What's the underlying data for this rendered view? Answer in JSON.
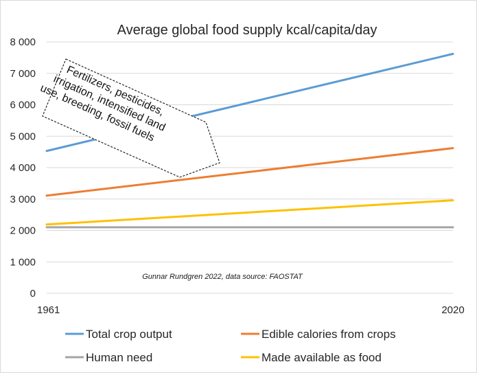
{
  "chart_data": {
    "type": "line",
    "title": "Average global food supply kcal/capita/day",
    "x": [
      1961,
      2020
    ],
    "x_tick_labels": [
      "1961",
      "2020"
    ],
    "y_tick_labels": [
      "0",
      "1 000",
      "2 000",
      "3 000",
      "4 000",
      "5 000",
      "6 000",
      "7 000",
      "8 000"
    ],
    "ylim": [
      0,
      8000
    ],
    "grid": true,
    "legend_position": "bottom",
    "series": [
      {
        "name": "Total crop output",
        "values": [
          4530,
          7620
        ],
        "color": "#5b9bd5"
      },
      {
        "name": "Edible calories from crops",
        "values": [
          3110,
          4620
        ],
        "color": "#ed7d31"
      },
      {
        "name": "Human need",
        "values": [
          2100,
          2100
        ],
        "color": "#a5a5a5"
      },
      {
        "name": "Made available as food",
        "values": [
          2190,
          2960
        ],
        "color": "#ffc000"
      }
    ],
    "annotation": {
      "lines": [
        "Fertilizers, pesticides,",
        "irrigation, intensified land",
        "use, breeding, fossil fuels"
      ]
    },
    "credit": "Gunnar Rundgren 2022, data source: FAOSTAT"
  }
}
